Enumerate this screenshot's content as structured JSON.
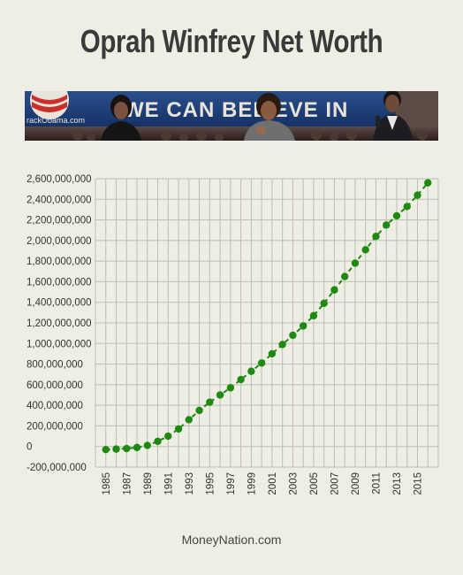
{
  "title": "Oprah Winfrey Net Worth",
  "banner": {
    "sign_text": "WE CAN BELIEVE IN",
    "logo_text": "rackObama.com"
  },
  "footer": "MoneyNation.com",
  "colors": {
    "background": "#efeee4",
    "series": "#1e8a12",
    "grid": "#bdbdb4",
    "banner_blue": "#1f3f7a"
  },
  "chart_data": {
    "type": "line",
    "title": "Oprah Winfrey Net Worth",
    "xlabel": "",
    "ylabel": "",
    "line_style": "dashed",
    "marker": "circle",
    "grid": true,
    "legend": "none",
    "ylim": [
      -200000000,
      2600000000
    ],
    "xlim": [
      1984,
      2017
    ],
    "y_ticks": [
      {
        "value": 2600000000,
        "label": "2,600,000,000"
      },
      {
        "value": 2400000000,
        "label": "2,400,000,000"
      },
      {
        "value": 2200000000,
        "label": "2,200,000,000"
      },
      {
        "value": 2000000000,
        "label": "2,000,000,000"
      },
      {
        "value": 1800000000,
        "label": "1,800,000,000"
      },
      {
        "value": 1600000000,
        "label": "1,600,000,000"
      },
      {
        "value": 1400000000,
        "label": "1,400,000,000"
      },
      {
        "value": 1200000000,
        "label": "1,200,000,000"
      },
      {
        "value": 1000000000,
        "label": "1,000,000,000"
      },
      {
        "value": 800000000,
        "label": "800,000,000"
      },
      {
        "value": 600000000,
        "label": "600,000,000"
      },
      {
        "value": 400000000,
        "label": "400,000,000"
      },
      {
        "value": 200000000,
        "label": "200,000,000"
      },
      {
        "value": 0,
        "label": "0"
      },
      {
        "value": -200000000,
        "label": "-200,000,000"
      }
    ],
    "x_ticks": [
      {
        "value": 1985,
        "label": "1985"
      },
      {
        "value": 1987,
        "label": "1987"
      },
      {
        "value": 1989,
        "label": "1989"
      },
      {
        "value": 1991,
        "label": "1991"
      },
      {
        "value": 1993,
        "label": "1993"
      },
      {
        "value": 1995,
        "label": "1995"
      },
      {
        "value": 1997,
        "label": "1997"
      },
      {
        "value": 1999,
        "label": "1999"
      },
      {
        "value": 2001,
        "label": "2001"
      },
      {
        "value": 2003,
        "label": "2003"
      },
      {
        "value": 2005,
        "label": "2005"
      },
      {
        "value": 2007,
        "label": "2007"
      },
      {
        "value": 2009,
        "label": "2009"
      },
      {
        "value": 2011,
        "label": "2011"
      },
      {
        "value": 2013,
        "label": "2013"
      },
      {
        "value": 2015,
        "label": "2015"
      }
    ],
    "x": [
      1985,
      1986,
      1987,
      1988,
      1989,
      1990,
      1991,
      1992,
      1993,
      1994,
      1995,
      1996,
      1997,
      1998,
      1999,
      2000,
      2001,
      2002,
      2003,
      2004,
      2005,
      2006,
      2007,
      2008,
      2009,
      2010,
      2011,
      2012,
      2013,
      2014,
      2015,
      2016
    ],
    "series": [
      {
        "values": [
          -30000000,
          -25000000,
          -20000000,
          -10000000,
          10000000,
          50000000,
          100000000,
          170000000,
          260000000,
          350000000,
          430000000,
          500000000,
          570000000,
          650000000,
          730000000,
          810000000,
          900000000,
          990000000,
          1080000000,
          1170000000,
          1270000000,
          1390000000,
          1520000000,
          1650000000,
          1780000000,
          1910000000,
          2040000000,
          2150000000,
          2240000000,
          2330000000,
          2440000000,
          2560000000
        ]
      }
    ]
  }
}
